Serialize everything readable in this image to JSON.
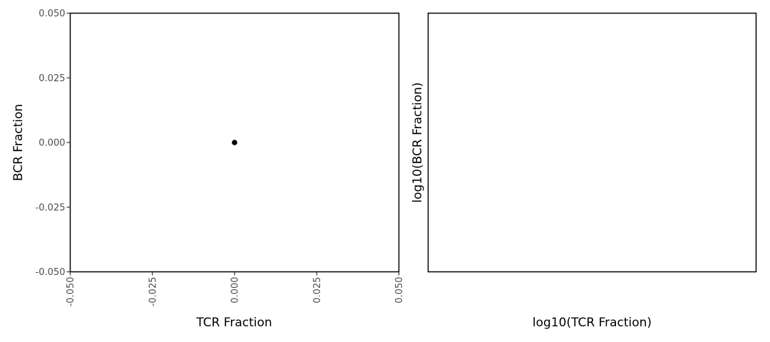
{
  "chart_data": [
    {
      "type": "scatter",
      "xlabel": "TCR Fraction",
      "ylabel": "BCR Fraction",
      "xlim": [
        -0.05,
        0.05
      ],
      "ylim": [
        -0.05,
        0.05
      ],
      "x_ticks": [
        "-0.050",
        "-0.025",
        "0.000",
        "0.025",
        "0.050"
      ],
      "y_ticks": [
        "-0.050",
        "-0.025",
        "0.000",
        "0.025",
        "0.050"
      ],
      "x_tick_values": [
        -0.05,
        -0.025,
        0,
        0.025,
        0.05
      ],
      "y_tick_values": [
        -0.05,
        -0.025,
        0,
        0.025,
        0.05
      ],
      "x_tick_rotation": "vertical",
      "grid": false,
      "points": [
        {
          "x": 0.0,
          "y": 0.0
        }
      ],
      "point_color": "#000000"
    },
    {
      "type": "scatter",
      "xlabel": "log10(TCR Fraction)",
      "ylabel": "log10(BCR Fraction)",
      "grid": false,
      "points": []
    }
  ]
}
